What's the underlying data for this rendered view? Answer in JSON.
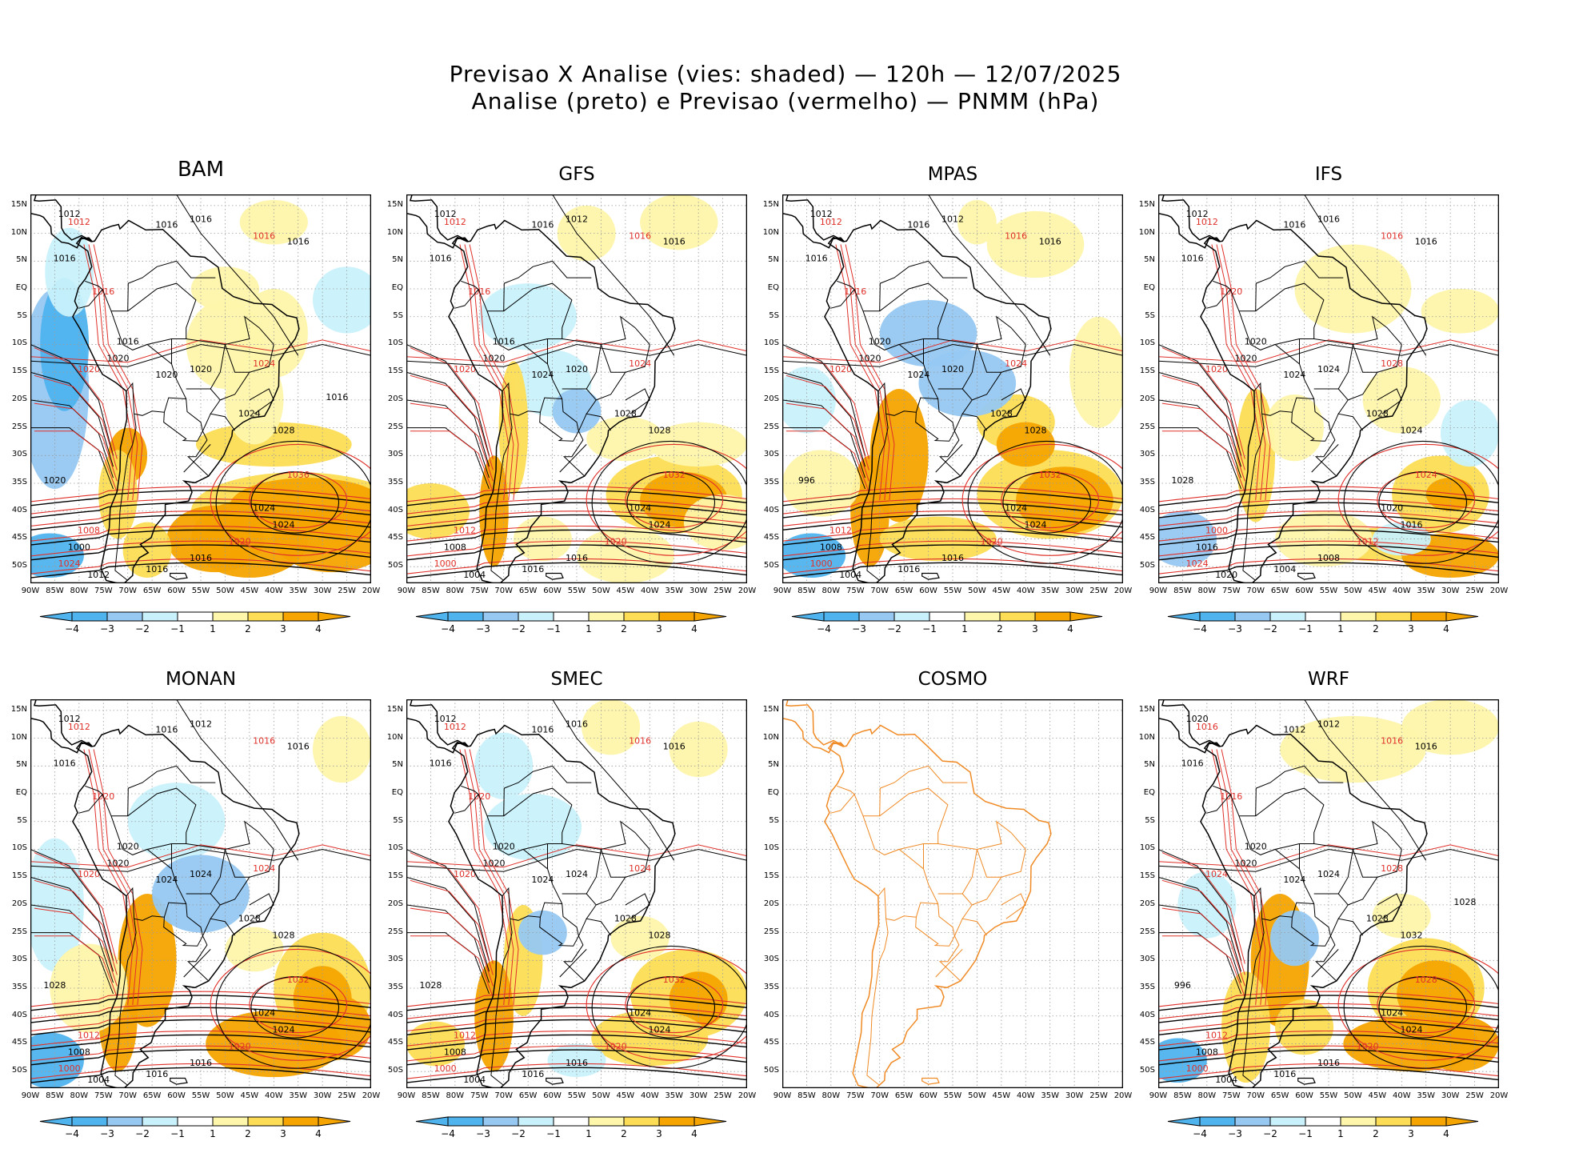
{
  "header": {
    "title_line1": "Previsao X Analise (vies: shaded) — 120h — 12/07/2025",
    "title_line2": "Analise (preto) e Previsao (vermelho) — PNMM (hPa)"
  },
  "colors": {
    "neg4": "#4fb3ee",
    "neg3": "#96c8f2",
    "neg2": "#c9f1fb",
    "neutral": "#ffffff",
    "pos2": "#fef6aa",
    "pos3": "#fddd55",
    "pos4": "#f6a400",
    "analysis_line": "#000000",
    "forecast_line": "#e0302a",
    "coast_cosmo": "#f08a25"
  },
  "chart_data": [
    {
      "type": "map",
      "title": "BAM",
      "has_data": true
    },
    {
      "type": "map",
      "title": "GFS",
      "has_data": true
    },
    {
      "type": "map",
      "title": "MPAS",
      "has_data": true
    },
    {
      "type": "map",
      "title": "IFS",
      "has_data": true
    },
    {
      "type": "map",
      "title": "MONAN",
      "has_data": true
    },
    {
      "type": "map",
      "title": "SMEC",
      "has_data": true
    },
    {
      "type": "map",
      "title": "COSMO",
      "has_data": false
    },
    {
      "type": "map",
      "title": "WRF",
      "has_data": true
    }
  ],
  "axes": {
    "lon_labels": [
      "90W",
      "85W",
      "80W",
      "75W",
      "70W",
      "65W",
      "60W",
      "55W",
      "50W",
      "45W",
      "40W",
      "35W",
      "30W",
      "25W",
      "20W"
    ],
    "lat_labels": [
      "15N",
      "10N",
      "5N",
      "EQ",
      "5S",
      "10S",
      "15S",
      "20S",
      "25S",
      "30S",
      "35S",
      "40S",
      "45S",
      "50S"
    ],
    "lon_range": [
      -90,
      -20
    ],
    "lat_range": [
      -53,
      17
    ]
  },
  "colorbar": {
    "labels": [
      "−4",
      "−3",
      "−2",
      "−1",
      "1",
      "2",
      "3",
      "4"
    ]
  },
  "contour_labels": {
    "BAM": [
      "1012",
      "1012",
      "1016",
      "1016",
      "1016",
      "1016",
      "1016",
      "1016",
      "1016",
      "1020",
      "1020",
      "1020",
      "1020",
      "1024",
      "1024",
      "1028",
      "1036",
      "1024",
      "1024",
      "1020",
      "1016",
      "1016",
      "1008",
      "1000",
      "1012",
      "1024",
      "1020",
      "1016"
    ],
    "GFS": [
      "1012",
      "1012",
      "1016",
      "1012",
      "1016",
      "1016",
      "1016",
      "1016",
      "1016",
      "1020",
      "1020",
      "1020",
      "1024",
      "1024",
      "1028",
      "1028",
      "1032",
      "1024",
      "1024",
      "1020",
      "1016",
      "1016",
      "1012",
      "1008",
      "1004",
      "1000"
    ],
    "MPAS": [
      "1012",
      "1012",
      "1016",
      "1012",
      "1016",
      "1016",
      "1016",
      "1016",
      "1020",
      "1020",
      "1020",
      "1020",
      "1024",
      "1024",
      "1028",
      "1028",
      "1032",
      "1024",
      "1024",
      "1020",
      "1016",
      "1016",
      "1012",
      "1008",
      "1004",
      "1000",
      "996"
    ],
    "IFS": [
      "1012",
      "1012",
      "1016",
      "1016",
      "1016",
      "1016",
      "1016",
      "1020",
      "1020",
      "1020",
      "1020",
      "1024",
      "1024",
      "1028",
      "1028",
      "1024",
      "1024",
      "1020",
      "1016",
      "1012",
      "1008",
      "1004",
      "1000",
      "1016",
      "1020",
      "1024",
      "1028"
    ],
    "MONAN": [
      "1012",
      "1012",
      "1016",
      "1012",
      "1016",
      "1016",
      "1016",
      "1020",
      "1020",
      "1020",
      "1020",
      "1024",
      "1024",
      "1024",
      "1028",
      "1028",
      "1032",
      "1024",
      "1024",
      "1020",
      "1016",
      "1016",
      "1012",
      "1008",
      "1004",
      "1000",
      "1028"
    ],
    "SMEC": [
      "1012",
      "1012",
      "1016",
      "1016",
      "1016",
      "1016",
      "1016",
      "1020",
      "1020",
      "1020",
      "1020",
      "1024",
      "1024",
      "1024",
      "1028",
      "1028",
      "1032",
      "1024",
      "1024",
      "1020",
      "1016",
      "1016",
      "1012",
      "1008",
      "1004",
      "1000",
      "1028"
    ],
    "COSMO": [],
    "WRF": [
      "1020",
      "1016",
      "1012",
      "1012",
      "1016",
      "1016",
      "1016",
      "1016",
      "1020",
      "1020",
      "1024",
      "1024",
      "1024",
      "1028",
      "1028",
      "1032",
      "1028",
      "1024",
      "1024",
      "1020",
      "1016",
      "1016",
      "1012",
      "1008",
      "1004",
      "1000",
      "996",
      "1028"
    ]
  }
}
